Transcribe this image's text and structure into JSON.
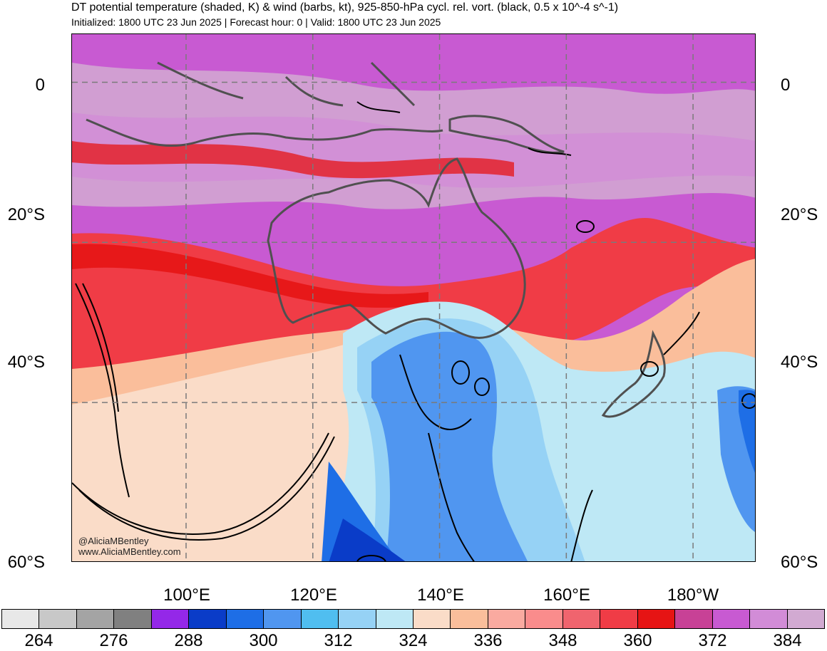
{
  "title": "DT potential temperature (shaded, K) & wind (barbs, kt), 925-850-hPa cycl. rel. vort. (black, 0.5 x 10^-4 s^-1)",
  "subtitle": "Initialized: 1800 UTC 23 Jun 2025 | Forecast hour: 0 | Valid: 1800 UTC 23 Jun 2025",
  "lat_labels": [
    "0",
    "20°S",
    "40°S",
    "60°S"
  ],
  "lon_labels": [
    "100°E",
    "120°E",
    "140°E",
    "160°E",
    "180°W"
  ],
  "credit": {
    "handle": "@AliciaMBentley",
    "website": "www.AliciaMBentley.com"
  },
  "colorbar": {
    "colors": [
      "#e8e8e8",
      "#c8c8c8",
      "#a4a4a4",
      "#808080",
      "#9428e8",
      "#0a3cc8",
      "#1e6ee6",
      "#5096f0",
      "#50bef0",
      "#96d2f5",
      "#bee8f5",
      "#fadcc8",
      "#fabe9b",
      "#faaaa0",
      "#fa8c8c",
      "#f0646e",
      "#f03c46",
      "#e61414",
      "#c84196",
      "#c85ad2",
      "#d28cd7",
      "#d2aad2"
    ],
    "labels": [
      "264",
      "276",
      "288",
      "300",
      "312",
      "324",
      "336",
      "348",
      "360",
      "372",
      "384"
    ]
  },
  "map": {
    "extent": {
      "lon_min": 82,
      "lon_max": 190,
      "lat_min": -60,
      "lat_max": 6
    },
    "gridline_lats": [
      0,
      -20,
      -40,
      -60
    ],
    "gridline_lons": [
      100,
      120,
      140,
      160,
      180
    ],
    "colors": {
      "ocean_cold_deep": "#0a3cc8",
      "ocean_cold": "#5096f0",
      "ocean_cool": "#96d2f5",
      "ocean_mild": "#bee8f5",
      "warm_peach": "#fadcc8",
      "warm_salmon": "#fabe9b",
      "warm_red": "#f03c46",
      "hot_red": "#e61414",
      "tropical_magenta": "#c85ad2",
      "tropical_violet": "#d28cd7",
      "tropical_pale": "#d2aad2",
      "coastline": "#505050",
      "contour": "#000000"
    }
  }
}
